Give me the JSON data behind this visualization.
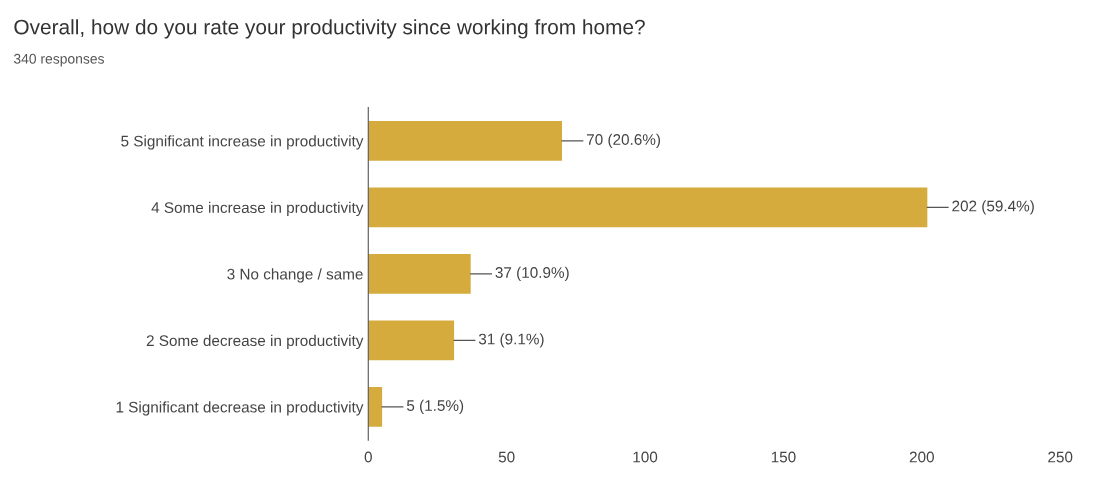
{
  "chart_data": {
    "type": "bar",
    "orientation": "horizontal",
    "title": "Overall, how do you rate your productivity since working from home?",
    "subtitle": "340 responses",
    "categories": [
      "5 Significant increase in productivity",
      "4 Some increase in productivity",
      "3 No change / same",
      "2 Some decrease in productivity",
      "1 Significant decrease in productivity"
    ],
    "values": [
      70,
      202,
      37,
      31,
      5
    ],
    "value_labels": [
      "70 (20.6%)",
      "202 (59.4%)",
      "37 (10.9%)",
      "31 (9.1%)",
      "5 (1.5%)"
    ],
    "color": "#d4ab3c",
    "xlim": [
      0,
      250
    ],
    "xticks": [
      0,
      50,
      100,
      150,
      200,
      250
    ],
    "grid": false
  }
}
